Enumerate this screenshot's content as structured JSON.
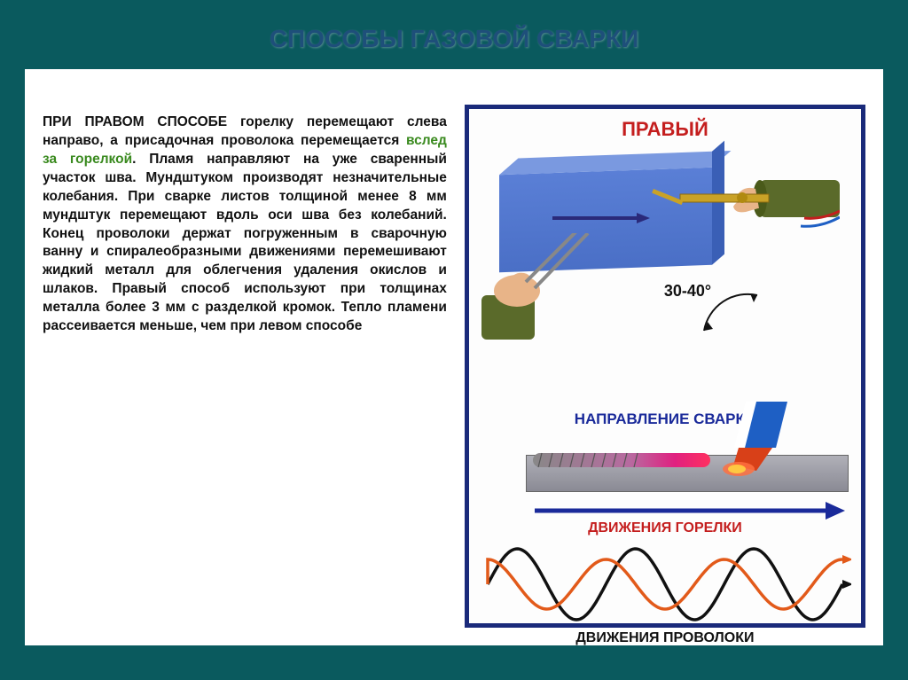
{
  "title": "СПОСОБЫ ГАЗОВОЙ СВАРКИ",
  "text": {
    "lead": "ПРИ ПРАВОМ СПОСОБЕ",
    "part1": " горелку перемещают слева направо, а присадочная проволока перемещается ",
    "green": "вслед за горелкой",
    "part2": ". Пламя направляют на уже сваренный участок шва. Мундштуком производят незначительные колебания. При сварке листов толщиной менее 8 мм мундштук перемещают вдоль оси шва без колебаний. Конец проволоки держат погруженным в сварочную ванну и спиралеобразными движениями перемешивают жидкий металл для облегчения удаления окислов и шлаков. Правый способ используют при толщинах металла более 3 мм с разделкой кромок. Тепло пламени рассеивается меньше, чем при левом способе"
  },
  "diagram": {
    "title": "ПРАВЫЙ",
    "angle": "30-40°",
    "direction_label": "НАПРАВЛЕНИЕ СВАРКИ",
    "torch_motion": "ДВИЖЕНИЯ ГОРЕЛКИ",
    "wire_motion": "ДВИЖЕНИЯ ПРОВОЛОКИ",
    "colors": {
      "border": "#1a2a7a",
      "title": "#c41e1e",
      "block": "#4a6fc6",
      "block_top": "#7a99e0",
      "arrow_dark": "#2a2a7a",
      "dir_arrow": "#1a2a9a",
      "dir_text": "#1a2a9a",
      "torch_wave": "#e25a1a",
      "wire_wave": "#111111",
      "weld_hot": "#e02080",
      "weld_cool": "#888888",
      "bar": "#9a9aa4",
      "nozzle_blue": "#1e5fc4",
      "nozzle_tip": "#d84018",
      "hand_skin": "#e8b488",
      "sleeve": "#5a6a2a",
      "torch_body": "#c9a227",
      "rod": "#888888"
    },
    "angle_range": [
      30,
      40
    ],
    "wave": {
      "torch_amplitude": 28,
      "wire_amplitude": 40,
      "cycles": 6,
      "phase_offset": 0.5
    }
  }
}
